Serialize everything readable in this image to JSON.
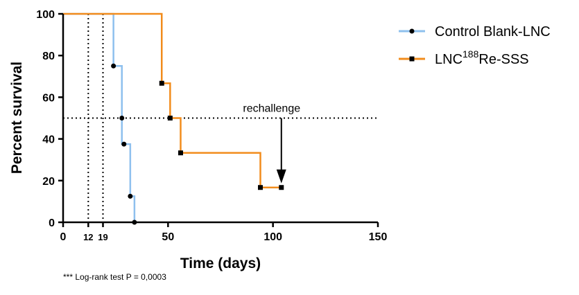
{
  "chart_data": {
    "type": "line",
    "subtype": "kaplan-meier-step",
    "xlabel": "Time (days)",
    "ylabel": "Percent survival",
    "xlim": [
      0,
      150
    ],
    "ylim": [
      0,
      100
    ],
    "x_ticks": [
      0,
      50,
      100,
      150
    ],
    "y_ticks": [
      0,
      20,
      40,
      60,
      80,
      100
    ],
    "extra_x_ticks": [
      12,
      19
    ],
    "grid": false,
    "legend_position": "top-right",
    "series": [
      {
        "name": "Control Blank-LNC",
        "color": "#8ec0ee",
        "marker": "circle",
        "steps": [
          [
            0,
            100
          ],
          [
            24,
            100
          ],
          [
            24,
            75
          ],
          [
            28,
            75
          ],
          [
            28,
            37.5
          ],
          [
            32,
            37.5
          ],
          [
            32,
            12.5
          ],
          [
            34,
            12.5
          ],
          [
            34,
            0
          ]
        ],
        "points": [
          [
            24,
            75
          ],
          [
            28,
            50
          ],
          [
            29,
            37.5
          ],
          [
            32,
            12.5
          ],
          [
            34,
            0
          ]
        ]
      },
      {
        "name": "LNC188Re-SSS",
        "name_parts": {
          "base": "LNC",
          "sup": "188",
          "rest": "Re-SSS"
        },
        "color": "#f28c1c",
        "marker": "square",
        "steps": [
          [
            0,
            100
          ],
          [
            47,
            100
          ],
          [
            47,
            66.7
          ],
          [
            51,
            66.7
          ],
          [
            51,
            50
          ],
          [
            56,
            50
          ],
          [
            56,
            33.3
          ],
          [
            94,
            33.3
          ],
          [
            94,
            16.7
          ],
          [
            104,
            16.7
          ]
        ],
        "points": [
          [
            47,
            66.7
          ],
          [
            51,
            50
          ],
          [
            56,
            33.3
          ],
          [
            94,
            16.7
          ],
          [
            104,
            16.7
          ]
        ]
      }
    ],
    "reference_lines": {
      "horizontal_y": 50,
      "vertical_x": [
        12,
        19
      ]
    },
    "annotation": {
      "text": "rechallenge",
      "arrow_x": 104,
      "arrow_from_y": 50,
      "arrow_to_y": 20
    }
  },
  "footnote": "*** Log-rank test P = 0,0003"
}
